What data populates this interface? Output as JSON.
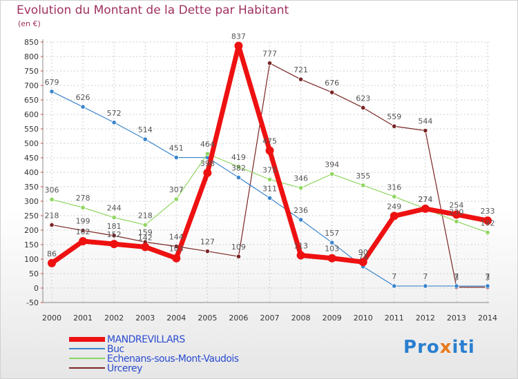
{
  "title": "Evolution du Montant de la Dette par Habitant",
  "unit_label": "(en €)",
  "logo": {
    "letters": [
      "P",
      "r",
      "o",
      "x",
      "i",
      "t",
      "i"
    ],
    "colors": [
      "#2a7fd0",
      "#2a7fd0",
      "#2a7fd0",
      "#e87a1e",
      "#2a7fd0",
      "#2a7fd0",
      "#2a7fd0"
    ]
  },
  "chart_data": {
    "type": "line",
    "x": [
      "2000",
      "2001",
      "2002",
      "2003",
      "2004",
      "2005",
      "2006",
      "2007",
      "2008",
      "2009",
      "2010",
      "2011",
      "2012",
      "2013",
      "2014"
    ],
    "ylim": [
      -50,
      850
    ],
    "yticks": [
      -50,
      0,
      50,
      100,
      150,
      200,
      250,
      300,
      350,
      400,
      450,
      500,
      550,
      600,
      650,
      700,
      750,
      800,
      850
    ],
    "grid": true,
    "legend_position": "bottom-left",
    "series": [
      {
        "name": "Urcerey",
        "color": "#7a2424",
        "width": 1.2,
        "values": [
          218,
          199,
          181,
          159,
          144,
          127,
          109,
          777,
          721,
          676,
          623,
          559,
          544,
          3,
          3
        ],
        "labels": [
          "218",
          "199",
          "181",
          "159",
          "144",
          "127",
          "109",
          "777",
          "721",
          "676",
          "623",
          "559",
          "544",
          "3",
          "3"
        ]
      },
      {
        "name": "Buc",
        "color": "#3a85cc",
        "width": 1.2,
        "values": [
          679,
          626,
          572,
          514,
          451,
          451,
          382,
          311,
          236,
          157,
          74,
          7,
          7,
          7,
          7
        ],
        "labels": [
          "679",
          "626",
          "572",
          "514",
          "451",
          "",
          "382",
          "311",
          "236",
          "157",
          "74",
          "7",
          "7",
          "7",
          "7"
        ]
      },
      {
        "name": "Echenans-sous-Mont-Vaudois",
        "color": "#8ed660",
        "width": 1.2,
        "values": [
          306,
          278,
          244,
          218,
          307,
          464,
          419,
          375,
          346,
          394,
          355,
          316,
          274,
          230,
          192
        ],
        "labels": [
          "306",
          "278",
          "244",
          "218",
          "307",
          "464",
          "419",
          "375",
          "346",
          "394",
          "355",
          "316",
          "274",
          "230",
          "192"
        ]
      },
      {
        "name": "MANDREVILLARS",
        "color": "#ee1111",
        "width": 7,
        "values": [
          86,
          162,
          152,
          142,
          103,
          398,
          837,
          475,
          113,
          103,
          90,
          249,
          274,
          254,
          233
        ],
        "labels": [
          "86",
          "162",
          "152",
          "142",
          "103",
          "398",
          "837",
          "475",
          "113",
          "103",
          "90",
          "249",
          "274",
          "254",
          "233"
        ]
      }
    ]
  },
  "legend": [
    {
      "name": "MANDREVILLARS",
      "color": "#ee1111",
      "thickness": 7
    },
    {
      "name": "Buc",
      "color": "#3a85cc",
      "thickness": 1.5
    },
    {
      "name": "Echenans-sous-Mont-Vaudois",
      "color": "#8ed660",
      "thickness": 1.5
    },
    {
      "name": "Urcerey",
      "color": "#7a2424",
      "thickness": 1.5
    }
  ]
}
